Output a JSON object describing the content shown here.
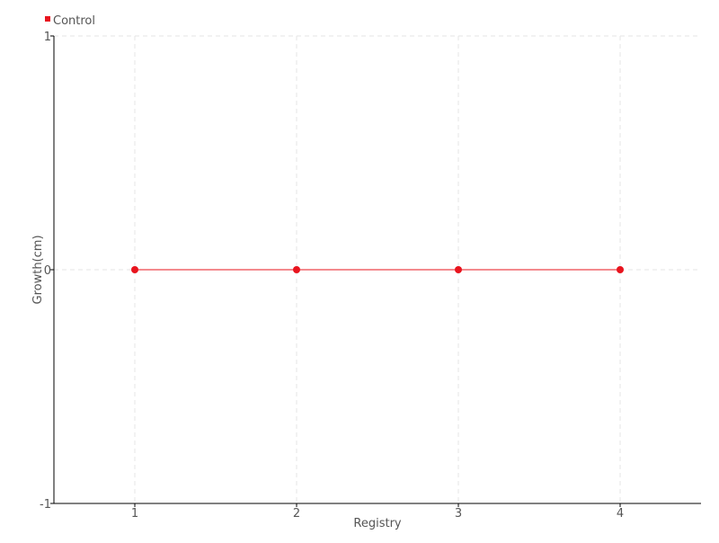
{
  "chart_data": {
    "type": "line",
    "title": "",
    "xlabel": "Registry",
    "ylabel": "Growth(cm)",
    "x": [
      1,
      2,
      3,
      4
    ],
    "xlim": [
      0.5,
      4.5
    ],
    "ylim": [
      -1,
      1
    ],
    "xticks": [
      "1",
      "2",
      "3",
      "4"
    ],
    "yticks": [
      -1,
      0,
      1
    ],
    "grid": true,
    "legend_position": "top-left",
    "series": [
      {
        "name": "Control",
        "values": [
          0,
          0,
          0,
          0
        ],
        "color": "#e8141e"
      }
    ]
  }
}
